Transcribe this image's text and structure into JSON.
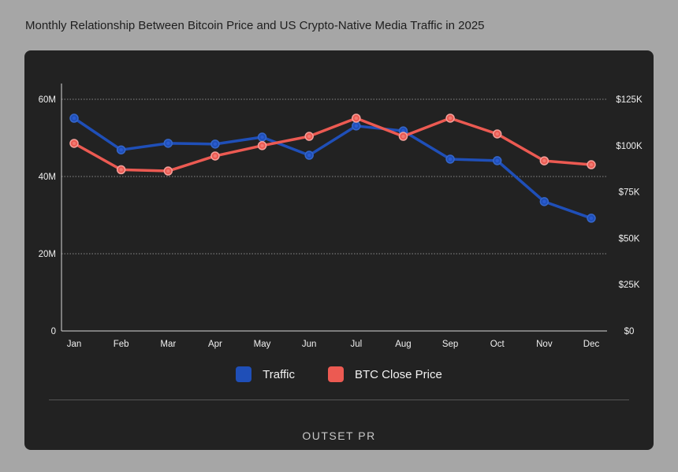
{
  "title": "Monthly Relationship Between Bitcoin Price and US Crypto-Native Media Traffic in 2025",
  "logo": "OUTSET PR",
  "chart_data": {
    "type": "line",
    "title": "Monthly Relationship Between Bitcoin Price and US Crypto-Native Media Traffic in 2025",
    "categories": [
      "Jan",
      "Feb",
      "Mar",
      "Apr",
      "May",
      "Jun",
      "Jul",
      "Aug",
      "Sep",
      "Oct",
      "Nov",
      "Dec"
    ],
    "y_left": {
      "ticks": [
        0,
        20,
        40,
        60
      ],
      "tick_labels": [
        "0",
        "20M",
        "40M",
        "60M"
      ],
      "range": [
        0,
        60
      ],
      "unit": "M"
    },
    "y_right": {
      "ticks": [
        0,
        25,
        50,
        75,
        100,
        125
      ],
      "tick_labels": [
        "$0",
        "$25K",
        "$50K",
        "$75K",
        "$100K",
        "$125K"
      ],
      "range": [
        0,
        125
      ],
      "unit": "K USD"
    },
    "grid": "horizontal dotted",
    "legend_position": "bottom",
    "series": [
      {
        "name": "Traffic",
        "axis": "left",
        "color": "#1f4fb8",
        "values": [
          55.1,
          46.9,
          48.6,
          48.4,
          50.2,
          45.5,
          53.1,
          51.8,
          44.5,
          44.1,
          33.5,
          29.2
        ]
      },
      {
        "name": "BTC Close Price",
        "axis": "right",
        "color": "#ec5a52",
        "values": [
          101.2,
          87.0,
          86.3,
          94.4,
          100.0,
          105.0,
          114.8,
          105.0,
          114.8,
          106.3,
          91.8,
          89.7
        ]
      }
    ]
  }
}
